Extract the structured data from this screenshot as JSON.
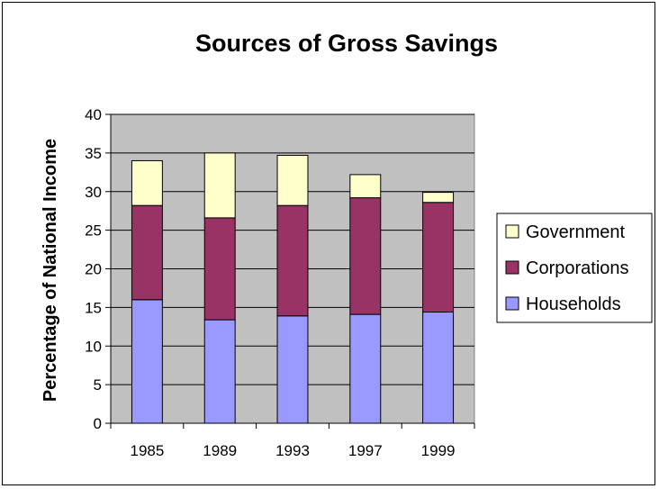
{
  "chart_data": {
    "type": "bar",
    "stacked": true,
    "title": "Sources of Gross Savings",
    "xlabel": "",
    "ylabel": "Percentage of National Income",
    "categories": [
      "1985",
      "1989",
      "1993",
      "1997",
      "1999"
    ],
    "series": [
      {
        "name": "Households",
        "values": [
          16.0,
          13.4,
          13.9,
          14.1,
          14.4
        ],
        "color": "#9999ff"
      },
      {
        "name": "Corporations",
        "values": [
          12.2,
          13.2,
          14.3,
          15.1,
          14.2
        ],
        "color": "#993366"
      },
      {
        "name": "Government",
        "values": [
          5.8,
          8.4,
          6.5,
          3.0,
          1.3
        ],
        "color": "#ffffcc"
      }
    ],
    "ylim": [
      0,
      40
    ],
    "yticks": [
      0,
      5,
      10,
      15,
      20,
      25,
      30,
      35,
      40
    ],
    "grid": true,
    "plot_background": "#c0c0c0",
    "legend_position": "right",
    "legend_order": [
      "Government",
      "Corporations",
      "Households"
    ]
  }
}
